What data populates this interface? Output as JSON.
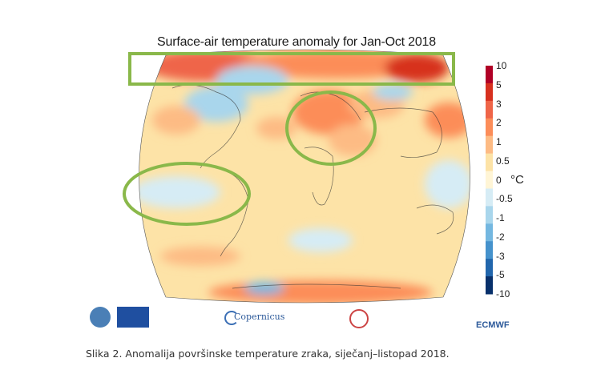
{
  "map": {
    "title": "Surface-air temperature anomaly for Jan-Oct 2018",
    "unit": "°C",
    "legend_ticks": [
      "10",
      "5",
      "3",
      "2",
      "1",
      "0.5",
      "0",
      "-0.5",
      "-1",
      "-2",
      "-3",
      "-5",
      "-10"
    ],
    "legend_colors": [
      "#b10026",
      "#d7301f",
      "#ef6548",
      "#fc8d59",
      "#fdbb84",
      "#fde3a7",
      "#fff5d6",
      "#d6ecf5",
      "#a9d6ec",
      "#74b7e0",
      "#4592cc",
      "#2166ac",
      "#08306b"
    ],
    "highlights": [
      "arctic-band",
      "middle-east",
      "south-pacific"
    ],
    "highlight_color": "#8ab84a"
  },
  "logos": {
    "copernicus": "Copernicus",
    "ecmwf": "ECMWF"
  },
  "caption": "Slika 2. Anomalija površinske temperature zraka, siječanj–listopad 2018."
}
